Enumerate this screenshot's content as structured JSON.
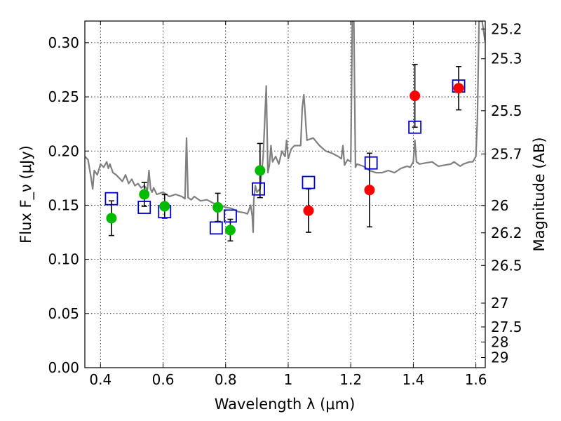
{
  "chart_data": {
    "type": "scatter",
    "xlabel": "Wavelength λ (μm)",
    "ylabel": "Flux F_ν (μJy)",
    "ylabel_right": "Magnitude (AB)",
    "xlim": [
      0.35,
      1.63
    ],
    "ylim": [
      0.0,
      0.32
    ],
    "grid": true,
    "x_ticks": [
      0.4,
      0.6,
      0.8,
      1.0,
      1.2,
      1.4,
      1.6
    ],
    "x_tick_labels": [
      "0.4",
      "0.6",
      "0.8",
      "1",
      "1.2",
      "1.4",
      "1.6"
    ],
    "y_ticks": [
      0.0,
      0.05,
      0.1,
      0.15,
      0.2,
      0.25,
      0.3
    ],
    "y_tick_labels": [
      "0.00",
      "0.05",
      "0.10",
      "0.15",
      "0.20",
      "0.25",
      "0.30"
    ],
    "right_axis_labels": [
      {
        "label": "25.2",
        "flux": 0.3127
      },
      {
        "label": "25.3",
        "flux": 0.2852
      },
      {
        "label": "25.5",
        "flux": 0.2372
      },
      {
        "label": "25.7",
        "flux": 0.1973
      },
      {
        "label": "26",
        "flux": 0.1497
      },
      {
        "label": "26.2",
        "flux": 0.1245
      },
      {
        "label": "26.5",
        "flux": 0.0944
      },
      {
        "label": "27",
        "flux": 0.0596
      },
      {
        "label": "27.5",
        "flux": 0.0376
      },
      {
        "label": "28",
        "flux": 0.0237
      },
      {
        "label": "29",
        "flux": 0.0094
      }
    ],
    "series": [
      {
        "marker": "line",
        "color": "#808080",
        "x": [
          0.35,
          0.36,
          0.37,
          0.375,
          0.38,
          0.39,
          0.4,
          0.41,
          0.42,
          0.425,
          0.43,
          0.44,
          0.45,
          0.46,
          0.47,
          0.48,
          0.49,
          0.5,
          0.51,
          0.52,
          0.53,
          0.54,
          0.55,
          0.555,
          0.56,
          0.565,
          0.57,
          0.58,
          0.6,
          0.62,
          0.64,
          0.66,
          0.67,
          0.675,
          0.68,
          0.69,
          0.7,
          0.72,
          0.74,
          0.76,
          0.78,
          0.8,
          0.82,
          0.84,
          0.86,
          0.87,
          0.88,
          0.885,
          0.888,
          0.89,
          0.895,
          0.9,
          0.91,
          0.92,
          0.93,
          0.935,
          0.94,
          0.945,
          0.95,
          0.96,
          0.97,
          0.98,
          0.99,
          0.995,
          1.0,
          1.01,
          1.02,
          1.04,
          1.045,
          1.05,
          1.06,
          1.08,
          1.1,
          1.12,
          1.14,
          1.16,
          1.17,
          1.175,
          1.18,
          1.19,
          1.2,
          1.205,
          1.21,
          1.215,
          1.22,
          1.24,
          1.26,
          1.28,
          1.3,
          1.32,
          1.34,
          1.36,
          1.38,
          1.39,
          1.4,
          1.405,
          1.41,
          1.42,
          1.44,
          1.46,
          1.48,
          1.5,
          1.52,
          1.53,
          1.54,
          1.55,
          1.56,
          1.58,
          1.59,
          1.6,
          1.605,
          1.61,
          1.62,
          1.63
        ],
        "y": [
          0.195,
          0.192,
          0.175,
          0.165,
          0.182,
          0.178,
          0.188,
          0.185,
          0.19,
          0.184,
          0.188,
          0.18,
          0.178,
          0.175,
          0.172,
          0.178,
          0.17,
          0.174,
          0.168,
          0.17,
          0.166,
          0.168,
          0.164,
          0.182,
          0.165,
          0.162,
          0.166,
          0.16,
          0.162,
          0.158,
          0.16,
          0.158,
          0.156,
          0.212,
          0.157,
          0.155,
          0.158,
          0.154,
          0.155,
          0.152,
          0.15,
          0.148,
          0.147,
          0.144,
          0.143,
          0.142,
          0.15,
          0.14,
          0.125,
          0.155,
          0.168,
          0.162,
          0.165,
          0.195,
          0.26,
          0.18,
          0.187,
          0.205,
          0.19,
          0.195,
          0.188,
          0.2,
          0.195,
          0.21,
          0.193,
          0.202,
          0.205,
          0.205,
          0.24,
          0.252,
          0.21,
          0.212,
          0.205,
          0.2,
          0.198,
          0.195,
          0.193,
          0.205,
          0.187,
          0.192,
          0.19,
          0.32,
          0.32,
          0.185,
          0.188,
          0.186,
          0.182,
          0.18,
          0.18,
          0.182,
          0.18,
          0.184,
          0.186,
          0.185,
          0.19,
          0.21,
          0.19,
          0.188,
          0.189,
          0.19,
          0.186,
          0.187,
          0.188,
          0.19,
          0.188,
          0.186,
          0.188,
          0.19,
          0.19,
          0.195,
          0.23,
          0.32,
          0.32,
          0.3
        ]
      },
      {
        "marker": "square",
        "color": "#0000cc",
        "x": [
          0.435,
          0.54,
          0.605,
          0.77,
          0.815,
          0.905,
          1.065,
          1.265,
          1.405,
          1.545
        ],
        "y": [
          0.156,
          0.148,
          0.144,
          0.129,
          0.14,
          0.165,
          0.171,
          0.189,
          0.222,
          0.26
        ]
      },
      {
        "marker": "circle",
        "color": "#00bb00",
        "x": [
          0.435,
          0.54,
          0.605,
          0.775,
          0.815,
          0.91
        ],
        "y": [
          0.138,
          0.16,
          0.149,
          0.148,
          0.127,
          0.182
        ],
        "yerr": [
          0.016,
          0.011,
          0.011,
          0.013,
          0.01,
          0.025
        ]
      },
      {
        "marker": "circle",
        "color": "#ff0000",
        "x": [
          1.065,
          1.26,
          1.405,
          1.545
        ],
        "y": [
          0.145,
          0.164,
          0.251,
          0.258
        ],
        "yerr": [
          0.02,
          0.034,
          0.029,
          0.02
        ]
      }
    ]
  }
}
